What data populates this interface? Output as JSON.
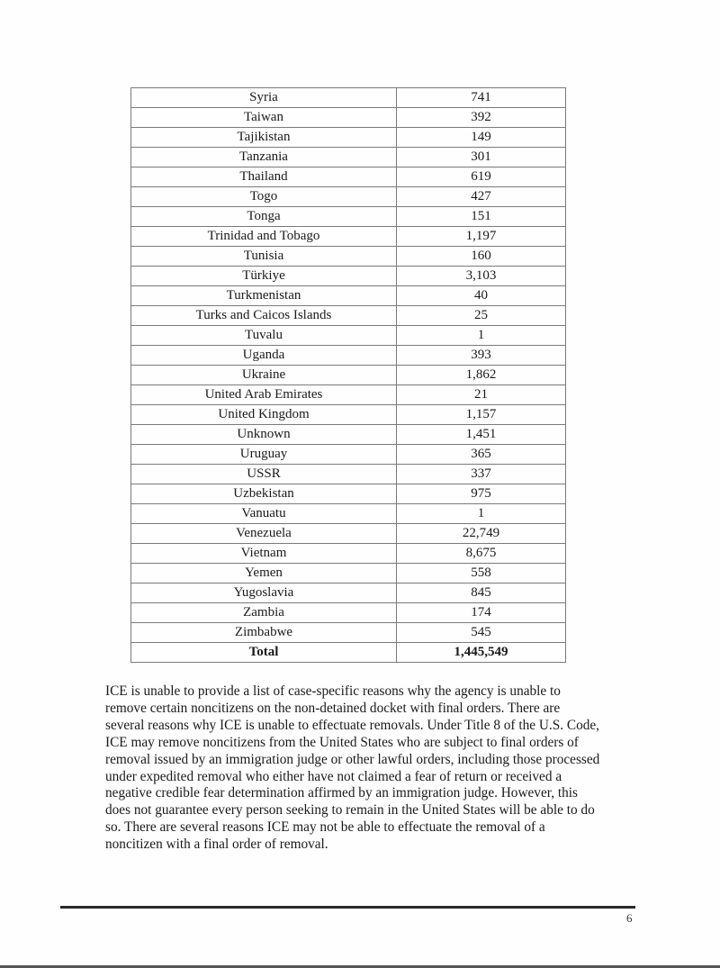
{
  "table": {
    "rows": [
      {
        "country": "Syria",
        "count": "741"
      },
      {
        "country": "Taiwan",
        "count": "392"
      },
      {
        "country": "Tajikistan",
        "count": "149"
      },
      {
        "country": "Tanzania",
        "count": "301"
      },
      {
        "country": "Thailand",
        "count": "619"
      },
      {
        "country": "Togo",
        "count": "427"
      },
      {
        "country": "Tonga",
        "count": "151"
      },
      {
        "country": "Trinidad and Tobago",
        "count": "1,197"
      },
      {
        "country": "Tunisia",
        "count": "160"
      },
      {
        "country": "Türkiye",
        "count": "3,103"
      },
      {
        "country": "Turkmenistan",
        "count": "40"
      },
      {
        "country": "Turks and Caicos Islands",
        "count": "25"
      },
      {
        "country": "Tuvalu",
        "count": "1"
      },
      {
        "country": "Uganda",
        "count": "393"
      },
      {
        "country": "Ukraine",
        "count": "1,862"
      },
      {
        "country": "United Arab Emirates",
        "count": "21"
      },
      {
        "country": "United Kingdom",
        "count": "1,157"
      },
      {
        "country": "Unknown",
        "count": "1,451"
      },
      {
        "country": "Uruguay",
        "count": "365"
      },
      {
        "country": "USSR",
        "count": "337"
      },
      {
        "country": "Uzbekistan",
        "count": "975"
      },
      {
        "country": "Vanuatu",
        "count": "1"
      },
      {
        "country": "Venezuela",
        "count": "22,749"
      },
      {
        "country": "Vietnam",
        "count": "8,675"
      },
      {
        "country": "Yemen",
        "count": "558"
      },
      {
        "country": "Yugoslavia",
        "count": "845"
      },
      {
        "country": "Zambia",
        "count": "174"
      },
      {
        "country": "Zimbabwe",
        "count": "545"
      }
    ],
    "total": {
      "label": "Total",
      "count": "1,445,549"
    }
  },
  "paragraph_lines": [
    "ICE is unable to provide a list of case-specific reasons why the agency is unable to",
    "remove certain noncitizens on the non-detained docket with final orders. There are",
    "several reasons why ICE is unable to effectuate removals. Under Title 8 of the U.S. Code,",
    "ICE may remove noncitizens from the United States who are subject to final orders of",
    "removal issued by an immigration judge or other lawful orders, including those processed",
    "under expedited removal who either have not claimed a fear of return or received a",
    "negative credible fear determination affirmed by an immigration judge. However, this",
    "does not guarantee every person seeking to remain in the United States will be able to do",
    "so. There are several reasons ICE may not be able to effectuate the removal of a",
    "noncitizen with a final order of removal."
  ],
  "footer": {
    "page_number": "6"
  }
}
